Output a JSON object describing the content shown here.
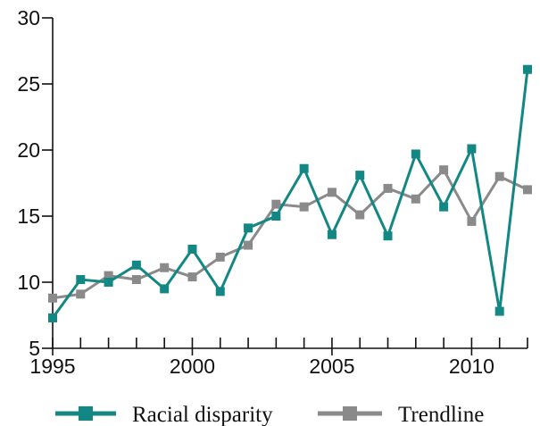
{
  "chart_data": {
    "type": "line",
    "title": "",
    "xlabel": "",
    "ylabel": "",
    "xlim": [
      1995,
      2012
    ],
    "ylim": [
      5,
      30
    ],
    "x_ticks": [
      "1995",
      "2000",
      "2005",
      "2010"
    ],
    "y_ticks": [
      "5",
      "10",
      "15",
      "20",
      "25",
      "30"
    ],
    "x": [
      1995,
      1996,
      1997,
      1998,
      1999,
      2000,
      2001,
      2002,
      2003,
      2004,
      2005,
      2006,
      2007,
      2008,
      2009,
      2010,
      2011,
      2012
    ],
    "series": [
      {
        "name": "Racial disparity",
        "color": "#138784",
        "marker": "square",
        "values": [
          7.3,
          10.2,
          10.0,
          11.3,
          9.5,
          12.5,
          9.3,
          14.1,
          15.0,
          18.6,
          13.6,
          18.1,
          13.5,
          19.7,
          15.7,
          20.1,
          7.8,
          26.1
        ]
      },
      {
        "name": "Trendline",
        "color": "#8a8a8a",
        "marker": "square",
        "values": [
          8.8,
          9.1,
          10.5,
          10.2,
          11.1,
          10.4,
          11.9,
          12.8,
          15.9,
          15.7,
          16.8,
          15.1,
          17.1,
          16.3,
          18.5,
          14.6,
          18.0,
          17.0
        ]
      }
    ],
    "grid": false,
    "legend_position": "bottom"
  }
}
